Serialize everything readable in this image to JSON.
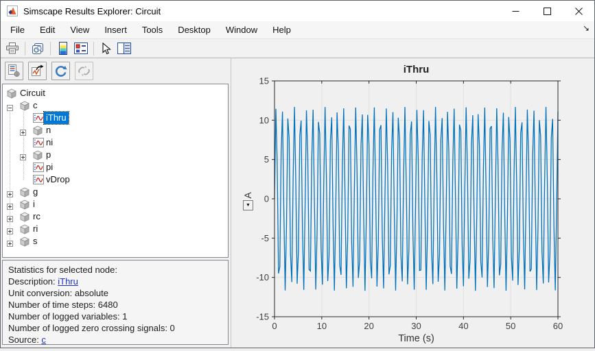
{
  "window": {
    "title": "Simscape Results Explorer: Circuit",
    "controls": [
      "minimize",
      "maximize",
      "close"
    ]
  },
  "menubar": {
    "items": [
      "File",
      "Edit",
      "View",
      "Insert",
      "Tools",
      "Desktop",
      "Window",
      "Help"
    ],
    "dock_arrow_glyph": "↘"
  },
  "toolbar": {
    "icons": [
      "print",
      "copy-figure",
      "colormap",
      "edit-colormap",
      "pointer",
      "property-editor"
    ]
  },
  "left_toolbar": {
    "icons": [
      "statistics-options",
      "plot-options",
      "refresh",
      "unlink"
    ],
    "disabled": [
      "unlink"
    ]
  },
  "tree": {
    "items": [
      {
        "label": "Circuit",
        "level": 0,
        "icon": "cube",
        "expander": null,
        "selected": false
      },
      {
        "label": "c",
        "level": 1,
        "icon": "cube",
        "expander": "minus",
        "selected": false
      },
      {
        "label": "iThru",
        "level": 2,
        "icon": "signal",
        "expander": null,
        "selected": true
      },
      {
        "label": "n",
        "level": 2,
        "icon": "cube",
        "expander": "plus",
        "selected": false
      },
      {
        "label": "ni",
        "level": 2,
        "icon": "signal",
        "expander": null,
        "selected": false
      },
      {
        "label": "p",
        "level": 2,
        "icon": "cube",
        "expander": "plus",
        "selected": false
      },
      {
        "label": "pi",
        "level": 2,
        "icon": "signal",
        "expander": null,
        "selected": false
      },
      {
        "label": "vDrop",
        "level": 2,
        "icon": "signal",
        "expander": null,
        "selected": false
      },
      {
        "label": "g",
        "level": 1,
        "icon": "cube",
        "expander": "plus",
        "selected": false
      },
      {
        "label": "i",
        "level": 1,
        "icon": "cube",
        "expander": "plus",
        "selected": false
      },
      {
        "label": "rc",
        "level": 1,
        "icon": "cube",
        "expander": "plus",
        "selected": false
      },
      {
        "label": "ri",
        "level": 1,
        "icon": "cube",
        "expander": "plus",
        "selected": false
      },
      {
        "label": "s",
        "level": 1,
        "icon": "cube",
        "expander": "plus",
        "selected": false
      }
    ]
  },
  "stats": {
    "rows": [
      {
        "segments": [
          {
            "text": "Statistics for selected node:"
          }
        ]
      },
      {
        "segments": [
          {
            "text": "Description: "
          },
          {
            "text": "iThru",
            "link": true
          }
        ]
      },
      {
        "segments": [
          {
            "text": "Unit conversion: absolute"
          }
        ]
      },
      {
        "segments": [
          {
            "text": "Number of time steps: 6480"
          }
        ]
      },
      {
        "segments": [
          {
            "text": "Number of logged variables: 1"
          }
        ]
      },
      {
        "segments": [
          {
            "text": "Number of logged zero crossing signals: 0"
          }
        ]
      },
      {
        "segments": [
          {
            "text": "Source: "
          },
          {
            "text": "c",
            "link": true
          }
        ]
      }
    ]
  },
  "chart_data": {
    "type": "line",
    "title": "iThru",
    "xlabel": "Time (s)",
    "ylabel": "A",
    "xlim": [
      0,
      60
    ],
    "ylim": [
      -15,
      15
    ],
    "xticks": [
      0,
      10,
      20,
      30,
      40,
      50,
      60
    ],
    "yticks": [
      -15,
      -10,
      -5,
      0,
      5,
      10,
      15
    ],
    "grid": true,
    "legend_position": "none",
    "unit_dropdown_glyph": "▼",
    "series": [
      {
        "name": "iThru",
        "color": "#0072BD",
        "signal": {
          "shape": "sine",
          "amplitude": 11.7,
          "offset": 0,
          "apparent_frequency_hz": 0.77,
          "duration_s": 60,
          "rendered_samples": 214,
          "logged_time_steps": 6480
        }
      }
    ]
  },
  "colors": {
    "line_blue": "#0072BD",
    "selection_blue": "#0078d7",
    "link_blue": "#2033cc",
    "figure_bg": "#f0f0f0",
    "axes_box": "#262626",
    "gridline": "#e0e0e0"
  }
}
